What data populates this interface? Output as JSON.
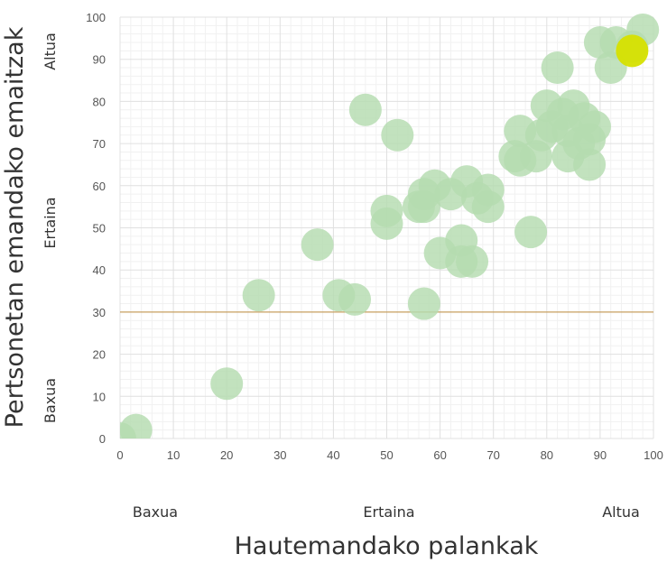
{
  "chart_data": {
    "type": "scatter",
    "title": "",
    "xlabel": "Hautemandako palankak",
    "ylabel": "Pertsonetan emandako emaitzak",
    "xlim": [
      0,
      100
    ],
    "ylim": [
      0,
      100
    ],
    "x_ticks": [
      "0",
      "10",
      "20",
      "30",
      "40",
      "50",
      "60",
      "70",
      "80",
      "90",
      "100"
    ],
    "y_ticks": [
      "0",
      "10",
      "20",
      "30",
      "40",
      "50",
      "60",
      "70",
      "80",
      "90",
      "100"
    ],
    "x_categories": [
      "Baxua",
      "Ertaina",
      "Altua"
    ],
    "y_categories": [
      "Baxua",
      "Ertaina",
      "Altua"
    ],
    "grid": true,
    "reference_line": {
      "y": 30,
      "color": "#c8a060"
    },
    "colors": {
      "points": "#b5dcb0",
      "highlight": "#d6e000",
      "grid": "#e0e0e0"
    },
    "series": [
      {
        "color": "#b5dcb0",
        "points": [
          [
            0,
            0
          ],
          [
            3,
            2
          ],
          [
            20,
            13
          ],
          [
            26,
            34
          ],
          [
            37,
            46
          ],
          [
            41,
            34
          ],
          [
            44,
            33
          ],
          [
            46,
            78
          ],
          [
            50,
            54
          ],
          [
            50,
            51
          ],
          [
            52,
            72
          ],
          [
            56,
            55
          ],
          [
            57,
            58
          ],
          [
            57,
            55
          ],
          [
            57,
            32
          ],
          [
            59,
            60
          ],
          [
            60,
            44
          ],
          [
            62,
            58
          ],
          [
            64,
            47
          ],
          [
            64,
            42
          ],
          [
            65,
            61
          ],
          [
            66,
            42
          ],
          [
            67,
            57
          ],
          [
            69,
            59
          ],
          [
            69,
            55
          ],
          [
            74,
            67
          ],
          [
            75,
            73
          ],
          [
            75,
            66
          ],
          [
            77,
            49
          ],
          [
            78,
            67
          ],
          [
            79,
            72
          ],
          [
            80,
            79
          ],
          [
            81,
            74
          ],
          [
            82,
            88
          ],
          [
            83,
            77
          ],
          [
            84,
            73
          ],
          [
            84,
            67
          ],
          [
            85,
            79
          ],
          [
            86,
            70
          ],
          [
            87,
            76
          ],
          [
            88,
            71
          ],
          [
            88,
            65
          ],
          [
            89,
            74
          ],
          [
            90,
            94
          ],
          [
            92,
            88
          ],
          [
            93,
            94
          ],
          [
            96,
            93
          ],
          [
            98,
            97
          ]
        ]
      },
      {
        "color": "#d6e000",
        "points": [
          [
            96,
            92
          ]
        ]
      }
    ]
  }
}
